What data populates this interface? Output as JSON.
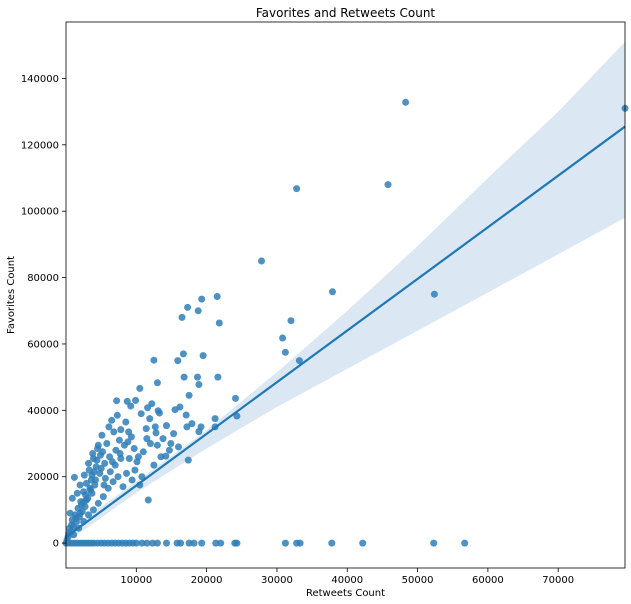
{
  "chart_data": {
    "type": "scatter",
    "title": "Favorites and Retweets Count",
    "xlabel": "Retweets Count",
    "ylabel": "Favorites Count",
    "xlim": [
      0,
      79500
    ],
    "ylim": [
      -7500,
      157000
    ],
    "x_ticks": [
      10000,
      20000,
      30000,
      40000,
      50000,
      60000,
      70000
    ],
    "y_ticks": [
      0,
      20000,
      40000,
      60000,
      80000,
      100000,
      120000,
      140000
    ],
    "grid": false,
    "colors": {
      "points": "#2f7eb8",
      "line": "#1f77b4",
      "band": "#cfe0f0"
    },
    "regression": {
      "line": [
        [
          0,
          1800
        ],
        [
          79500,
          125500
        ]
      ],
      "band_upper": [
        [
          0,
          3500
        ],
        [
          10000,
          18500
        ],
        [
          20000,
          34000
        ],
        [
          30000,
          51500
        ],
        [
          40000,
          70000
        ],
        [
          50000,
          89500
        ],
        [
          60000,
          110000
        ],
        [
          70000,
          130000
        ],
        [
          79500,
          151000
        ]
      ],
      "band_lower": [
        [
          0,
          100
        ],
        [
          10000,
          15200
        ],
        [
          20000,
          28500
        ],
        [
          30000,
          41000
        ],
        [
          40000,
          52500
        ],
        [
          50000,
          64000
        ],
        [
          60000,
          75500
        ],
        [
          70000,
          87000
        ],
        [
          79500,
          98000
        ]
      ]
    },
    "points": [
      [
        48300,
        132800
      ],
      [
        79500,
        131000
      ],
      [
        45800,
        108000
      ],
      [
        32800,
        106800
      ],
      [
        27800,
        85000
      ],
      [
        37900,
        75700
      ],
      [
        52400,
        75000
      ],
      [
        32000,
        67000
      ],
      [
        30800,
        61800
      ],
      [
        31200,
        57500
      ],
      [
        33200,
        55000
      ],
      [
        21500,
        74300
      ],
      [
        19300,
        73500
      ],
      [
        17300,
        71000
      ],
      [
        18800,
        70000
      ],
      [
        16500,
        68000
      ],
      [
        21800,
        66300
      ],
      [
        19500,
        56500
      ],
      [
        16700,
        57000
      ],
      [
        15900,
        55000
      ],
      [
        12500,
        55100
      ],
      [
        16800,
        50000
      ],
      [
        18700,
        50000
      ],
      [
        21600,
        50000
      ],
      [
        18900,
        47800
      ],
      [
        17500,
        44500
      ],
      [
        13000,
        48300
      ],
      [
        24100,
        43600
      ],
      [
        24300,
        38300
      ],
      [
        10500,
        46600
      ],
      [
        15500,
        40200
      ],
      [
        16200,
        41000
      ],
      [
        17100,
        38600
      ],
      [
        13100,
        39900
      ],
      [
        13300,
        39200
      ],
      [
        12200,
        42000
      ],
      [
        11600,
        40800
      ],
      [
        8700,
        42700
      ],
      [
        9200,
        41300
      ],
      [
        7200,
        42900
      ],
      [
        21200,
        37500
      ],
      [
        21200,
        35000
      ],
      [
        19200,
        35000
      ],
      [
        17900,
        36000
      ],
      [
        17200,
        35000
      ],
      [
        18900,
        33600
      ],
      [
        14300,
        35400
      ],
      [
        12800,
        33200
      ],
      [
        13000,
        29500
      ],
      [
        14700,
        28000
      ],
      [
        14200,
        26200
      ],
      [
        13500,
        26000
      ],
      [
        17400,
        25000
      ],
      [
        11400,
        34500
      ],
      [
        11500,
        31500
      ],
      [
        12500,
        23500
      ],
      [
        11700,
        13000
      ],
      [
        10800,
        20000
      ],
      [
        10500,
        17500
      ],
      [
        9800,
        22000
      ],
      [
        9000,
        25500
      ],
      [
        9300,
        32000
      ],
      [
        8500,
        36500
      ],
      [
        7800,
        34200
      ],
      [
        8300,
        29500
      ],
      [
        7600,
        31000
      ],
      [
        7100,
        28000
      ],
      [
        6800,
        33500
      ],
      [
        6500,
        37000
      ],
      [
        6200,
        26000
      ],
      [
        5800,
        30000
      ],
      [
        5500,
        24000
      ],
      [
        5200,
        27500
      ],
      [
        4800,
        21000
      ],
      [
        4600,
        29500
      ],
      [
        4300,
        23000
      ],
      [
        4100,
        17500
      ],
      [
        3900,
        25500
      ],
      [
        3700,
        20500
      ],
      [
        3500,
        16000
      ],
      [
        3300,
        22000
      ],
      [
        3100,
        13500
      ],
      [
        2900,
        18000
      ],
      [
        2700,
        11000
      ],
      [
        2500,
        15500
      ],
      [
        2300,
        9500
      ],
      [
        2100,
        12500
      ],
      [
        1900,
        8000
      ],
      [
        1700,
        10500
      ],
      [
        1500,
        6500
      ],
      [
        1300,
        8500
      ],
      [
        1100,
        5000
      ],
      [
        900,
        7000
      ],
      [
        700,
        3500
      ],
      [
        500,
        4500
      ],
      [
        300,
        2000
      ],
      [
        150,
        1000
      ],
      [
        1200,
        19800
      ],
      [
        900,
        13500
      ],
      [
        600,
        9000
      ],
      [
        1600,
        15000
      ],
      [
        2000,
        17500
      ],
      [
        2600,
        20500
      ],
      [
        3200,
        24000
      ],
      [
        3800,
        27000
      ],
      [
        4400,
        25000
      ],
      [
        5000,
        22500
      ],
      [
        5600,
        19500
      ],
      [
        6300,
        21500
      ],
      [
        7000,
        23500
      ],
      [
        7800,
        25500
      ],
      [
        8600,
        21000
      ],
      [
        9400,
        19000
      ],
      [
        10100,
        24500
      ],
      [
        6000,
        16500
      ],
      [
        5300,
        14000
      ],
      [
        4600,
        12000
      ],
      [
        3900,
        10000
      ],
      [
        3200,
        8500
      ],
      [
        2500,
        6500
      ],
      [
        1800,
        4500
      ],
      [
        1100,
        2500
      ],
      [
        6700,
        18500
      ],
      [
        7400,
        20000
      ],
      [
        8100,
        17000
      ],
      [
        5100,
        32500
      ],
      [
        4500,
        28500
      ],
      [
        3600,
        19000
      ],
      [
        2800,
        14500
      ],
      [
        2200,
        11500
      ],
      [
        9700,
        28500
      ],
      [
        10300,
        26000
      ],
      [
        11000,
        27500
      ],
      [
        8900,
        33500
      ],
      [
        7300,
        38500
      ],
      [
        6100,
        35000
      ],
      [
        4900,
        26500
      ],
      [
        4000,
        21500
      ],
      [
        3400,
        16500
      ],
      [
        2600,
        12500
      ],
      [
        1400,
        7500
      ],
      [
        800,
        5500
      ],
      [
        400,
        3000
      ],
      [
        2000,
        9000
      ],
      [
        2900,
        13000
      ],
      [
        3700,
        15000
      ],
      [
        4200,
        19000
      ],
      [
        5400,
        17500
      ],
      [
        6600,
        24500
      ],
      [
        7700,
        27000
      ],
      [
        8800,
        30500
      ],
      [
        12000,
        30000
      ],
      [
        12700,
        35000
      ],
      [
        13800,
        31500
      ],
      [
        14900,
        30000
      ],
      [
        16000,
        29000
      ],
      [
        15300,
        33000
      ],
      [
        11900,
        37500
      ],
      [
        10700,
        39000
      ],
      [
        9900,
        43000
      ],
      [
        0,
        0
      ],
      [
        400,
        0
      ],
      [
        800,
        0
      ],
      [
        1200,
        0
      ],
      [
        1600,
        0
      ],
      [
        2000,
        0
      ],
      [
        2400,
        0
      ],
      [
        2800,
        0
      ],
      [
        3200,
        0
      ],
      [
        3600,
        0
      ],
      [
        4000,
        0
      ],
      [
        4500,
        0
      ],
      [
        5000,
        0
      ],
      [
        5500,
        0
      ],
      [
        6000,
        0
      ],
      [
        6500,
        0
      ],
      [
        7000,
        0
      ],
      [
        7500,
        0
      ],
      [
        8000,
        0
      ],
      [
        8500,
        0
      ],
      [
        9000,
        0
      ],
      [
        9500,
        0
      ],
      [
        10000,
        0
      ],
      [
        10800,
        0
      ],
      [
        11500,
        0
      ],
      [
        12300,
        0
      ],
      [
        13000,
        0
      ],
      [
        14300,
        0
      ],
      [
        15800,
        0
      ],
      [
        16300,
        0
      ],
      [
        17500,
        0
      ],
      [
        18200,
        0
      ],
      [
        19300,
        0
      ],
      [
        21300,
        0
      ],
      [
        22000,
        0
      ],
      [
        24000,
        0
      ],
      [
        24300,
        0
      ],
      [
        31200,
        0
      ],
      [
        32800,
        0
      ],
      [
        33300,
        0
      ],
      [
        37800,
        0
      ],
      [
        42200,
        0
      ],
      [
        52300,
        0
      ],
      [
        56700,
        0
      ]
    ]
  }
}
